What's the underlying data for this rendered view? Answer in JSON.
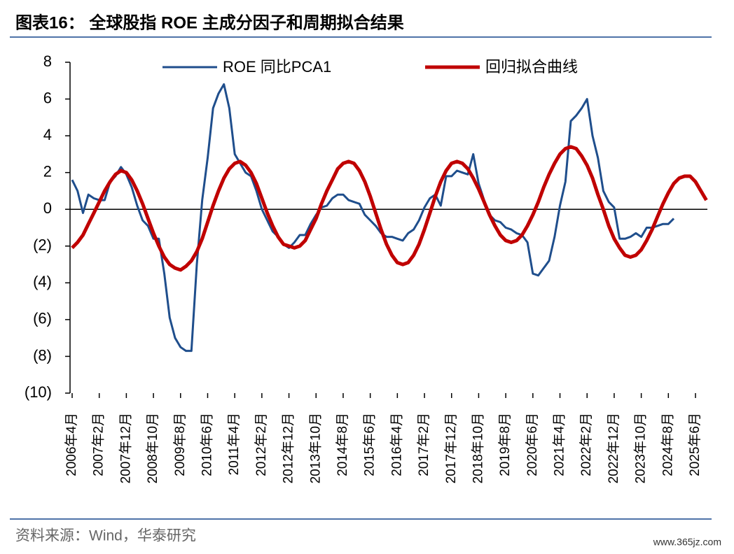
{
  "chart_data": {
    "type": "line",
    "title": "图表16：  全球股指 ROE 主成分因子和周期拟合结果",
    "source": "资料来源：Wind，华泰研究",
    "watermark": "www.365jz.com",
    "legend": "top",
    "categories": [
      "2006年4月",
      null,
      null,
      null,
      null,
      "2007年2月",
      null,
      null,
      null,
      null,
      "2007年12月",
      null,
      null,
      null,
      null,
      "2008年10月",
      null,
      null,
      null,
      null,
      "2009年8月",
      null,
      null,
      null,
      null,
      "2010年6月",
      null,
      null,
      null,
      null,
      "2011年4月",
      null,
      null,
      null,
      null,
      "2012年2月",
      null,
      null,
      null,
      null,
      "2012年12月",
      null,
      null,
      null,
      null,
      "2013年10月",
      null,
      null,
      null,
      null,
      "2014年8月",
      null,
      null,
      null,
      null,
      "2015年6月",
      null,
      null,
      null,
      null,
      "2016年4月",
      null,
      null,
      null,
      null,
      "2017年2月",
      null,
      null,
      null,
      null,
      "2017年12月",
      null,
      null,
      null,
      null,
      "2018年10月",
      null,
      null,
      null,
      null,
      "2019年8月",
      null,
      null,
      null,
      null,
      "2020年6月",
      null,
      null,
      null,
      null,
      "2021年4月",
      null,
      null,
      null,
      null,
      "2022年2月",
      null,
      null,
      null,
      null,
      "2022年12月",
      null,
      null,
      null,
      null,
      "2023年10月",
      null,
      null,
      null,
      null,
      "2024年8月",
      null,
      null,
      null,
      null,
      "2025年6月",
      null,
      null
    ],
    "series": [
      {
        "name": "ROE 同比PCA1",
        "color": "#1f4e8c",
        "width": 3,
        "values": [
          1.6,
          1.0,
          -0.2,
          0.8,
          0.6,
          0.5,
          0.5,
          1.5,
          1.8,
          2.3,
          1.9,
          1.2,
          0.2,
          -0.6,
          -0.9,
          -1.6,
          -1.6,
          -3.5,
          -5.9,
          -7.0,
          -7.5,
          -7.7,
          -7.7,
          -3.0,
          0.5,
          2.8,
          5.5,
          6.3,
          6.8,
          5.5,
          3.0,
          2.5,
          2.0,
          1.8,
          1.0,
          0,
          -0.6,
          -1.2,
          -1.5,
          -1.9,
          -2.1,
          -1.8,
          -1.4,
          -1.4,
          -0.8,
          -0.3,
          0.1,
          0.2,
          0.6,
          0.8,
          0.8,
          0.5,
          0.4,
          0.3,
          -0.3,
          -0.6,
          -0.9,
          -1.3,
          -1.5,
          -1.5,
          -1.6,
          -1.7,
          -1.3,
          -1.1,
          -0.6,
          0.1,
          0.6,
          0.8,
          0.2,
          1.8,
          1.8,
          2.1,
          2.0,
          1.9,
          3.0,
          1.4,
          0.5,
          -0.3,
          -0.6,
          -0.7,
          -1.0,
          -1.1,
          -1.3,
          -1.4,
          -1.8,
          -3.5,
          -3.6,
          -3.2,
          -2.8,
          -1.5,
          0.2,
          1.5,
          4.8,
          5.1,
          5.5,
          6.0,
          4.0,
          2.8,
          1.0,
          0.4,
          0.1,
          -1.6,
          -1.6,
          -1.5,
          -1.3,
          -1.5,
          -1.0,
          -1.0,
          -0.9,
          -0.8,
          -0.8,
          -0.5,
          null,
          null,
          null,
          null,
          null,
          null
        ]
      },
      {
        "name": "回归拟合曲线",
        "color": "#c00000",
        "width": 5,
        "values": [
          -2.1,
          -1.8,
          -1.4,
          -0.8,
          -0.2,
          0.4,
          1.0,
          1.5,
          1.9,
          2.1,
          2.0,
          1.6,
          1.0,
          0.3,
          -0.5,
          -1.3,
          -2.0,
          -2.6,
          -3.0,
          -3.2,
          -3.3,
          -3.1,
          -2.8,
          -2.3,
          -1.6,
          -0.7,
          0.2,
          1.0,
          1.7,
          2.2,
          2.5,
          2.6,
          2.4,
          2.0,
          1.4,
          0.6,
          -0.2,
          -0.9,
          -1.5,
          -1.9,
          -2.0,
          -2.1,
          -2.0,
          -1.7,
          -1.1,
          -0.5,
          0.3,
          1.0,
          1.6,
          2.2,
          2.5,
          2.6,
          2.5,
          2.1,
          1.5,
          0.7,
          -0.2,
          -1.1,
          -1.9,
          -2.5,
          -2.9,
          -3.0,
          -2.9,
          -2.5,
          -1.9,
          -1.1,
          -0.2,
          0.7,
          1.5,
          2.1,
          2.5,
          2.6,
          2.5,
          2.2,
          1.7,
          1.1,
          0.4,
          -0.3,
          -0.9,
          -1.4,
          -1.7,
          -1.8,
          -1.7,
          -1.4,
          -0.9,
          -0.3,
          0.4,
          1.2,
          1.9,
          2.5,
          3.0,
          3.3,
          3.4,
          3.3,
          2.9,
          2.4,
          1.7,
          0.8,
          0.0,
          -0.9,
          -1.6,
          -2.1,
          -2.5,
          -2.6,
          -2.5,
          -2.2,
          -1.7,
          -1.1,
          -0.4,
          0.3,
          0.9,
          1.4,
          1.7,
          1.8,
          1.8,
          1.5,
          1.0,
          0.5
        ]
      }
    ],
    "ylim": [
      -10,
      8
    ],
    "yticks": [
      {
        "value": -10,
        "label": "(10)"
      },
      {
        "value": -8,
        "label": "(8)"
      },
      {
        "value": -6,
        "label": "(6)"
      },
      {
        "value": -4,
        "label": "(4)"
      },
      {
        "value": -2,
        "label": "(2)"
      },
      0,
      2,
      4,
      6,
      8
    ]
  }
}
